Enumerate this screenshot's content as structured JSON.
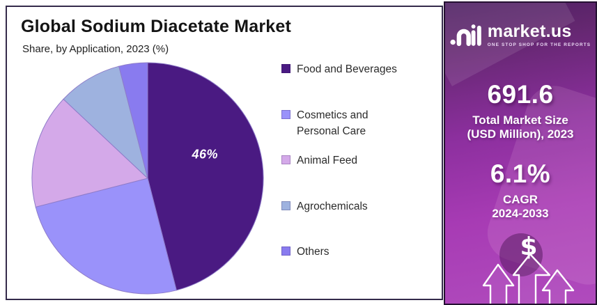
{
  "chart_data": {
    "type": "pie",
    "title": "Global Sodium Diacetate Market",
    "subtitle": "Share, by Application, 2023 (%)",
    "unit": "%",
    "labels": [
      "Food and Beverages",
      "Cosmetics and Personal Care",
      "Animal Feed",
      "Agrochemicals",
      "Others"
    ],
    "values": [
      46,
      25,
      16,
      9,
      4
    ],
    "colors": [
      "#4a1a82",
      "#9a92fa",
      "#d4a9e9",
      "#9eb2df",
      "#897bef"
    ],
    "data_labels": [
      "46%",
      "",
      "",
      "",
      ""
    ],
    "start_angle_deg": 0,
    "direction": "clockwise",
    "legend_position": "right",
    "slice_stroke": "#8e7cc9"
  },
  "sidebar": {
    "logo_word": "market.us",
    "logo_tagline": "ONE STOP SHOP FOR THE REPORTS",
    "market_size": {
      "value": "691.6",
      "label_line1": "Total Market Size",
      "label_line2": "(USD Million), 2023"
    },
    "cagr": {
      "value": "6.1%",
      "label_line1": "CAGR",
      "label_line2": "2024-2033"
    },
    "dollar_symbol": "$",
    "icons": {
      "logo": "marketus-soundwave-logo",
      "dollar": "dollar-sign",
      "arrows": "growth-up-arrows"
    },
    "brand_colors": {
      "gradient_top": "#4e2063",
      "gradient_bottom": "#b04bbd"
    }
  }
}
